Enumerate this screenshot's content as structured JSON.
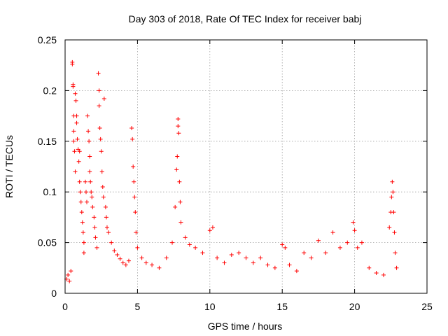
{
  "chart_data": {
    "type": "scatter",
    "title": "Day 303 of 2018, Rate Of TEC Index for receiver babj",
    "xlabel": "GPS time / hours",
    "ylabel": "ROTI / TECUs",
    "xlim": [
      0,
      25
    ],
    "ylim": [
      0,
      0.25
    ],
    "x_ticks": [
      0,
      5,
      10,
      15,
      20,
      25
    ],
    "x_tick_labels": [
      "0",
      "5",
      "10",
      "15",
      "20",
      "25"
    ],
    "y_ticks": [
      0,
      0.05,
      0.1,
      0.15,
      0.2,
      0.25
    ],
    "y_tick_labels": [
      "0",
      "0.05",
      "0.1",
      "0.15",
      "0.2",
      "0.25"
    ],
    "grid": true,
    "marker": "plus",
    "color": "#ff0000",
    "series": [
      {
        "points": [
          [
            0.1,
            0.014
          ],
          [
            0.2,
            0.018
          ],
          [
            0.3,
            0.012
          ],
          [
            0.4,
            0.022
          ],
          [
            0.5,
            0.228
          ],
          [
            0.5,
            0.226
          ],
          [
            0.55,
            0.206
          ],
          [
            0.55,
            0.204
          ],
          [
            0.6,
            0.175
          ],
          [
            0.6,
            0.16
          ],
          [
            0.6,
            0.15
          ],
          [
            0.65,
            0.14
          ],
          [
            0.7,
            0.12
          ],
          [
            0.7,
            0.197
          ],
          [
            0.75,
            0.19
          ],
          [
            0.8,
            0.175
          ],
          [
            0.8,
            0.168
          ],
          [
            0.85,
            0.152
          ],
          [
            0.9,
            0.142
          ],
          [
            0.95,
            0.13
          ],
          [
            1.0,
            0.14
          ],
          [
            1.0,
            0.11
          ],
          [
            1.05,
            0.1
          ],
          [
            1.1,
            0.09
          ],
          [
            1.15,
            0.08
          ],
          [
            1.2,
            0.07
          ],
          [
            1.25,
            0.06
          ],
          [
            1.3,
            0.05
          ],
          [
            1.3,
            0.04
          ],
          [
            1.4,
            0.11
          ],
          [
            1.45,
            0.1
          ],
          [
            1.5,
            0.09
          ],
          [
            1.55,
            0.175
          ],
          [
            1.6,
            0.16
          ],
          [
            1.65,
            0.15
          ],
          [
            1.7,
            0.135
          ],
          [
            1.7,
            0.12
          ],
          [
            1.75,
            0.11
          ],
          [
            1.8,
            0.1
          ],
          [
            1.85,
            0.095
          ],
          [
            1.9,
            0.085
          ],
          [
            2.0,
            0.075
          ],
          [
            2.05,
            0.065
          ],
          [
            2.1,
            0.055
          ],
          [
            2.2,
            0.045
          ],
          [
            2.3,
            0.217
          ],
          [
            2.35,
            0.2
          ],
          [
            2.35,
            0.185
          ],
          [
            2.4,
            0.163
          ],
          [
            2.45,
            0.152
          ],
          [
            2.5,
            0.14
          ],
          [
            2.55,
            0.12
          ],
          [
            2.6,
            0.105
          ],
          [
            2.65,
            0.095
          ],
          [
            2.7,
            0.192
          ],
          [
            2.8,
            0.085
          ],
          [
            2.85,
            0.075
          ],
          [
            2.9,
            0.065
          ],
          [
            3.0,
            0.06
          ],
          [
            3.2,
            0.05
          ],
          [
            3.4,
            0.042
          ],
          [
            3.6,
            0.038
          ],
          [
            3.8,
            0.034
          ],
          [
            4.0,
            0.03
          ],
          [
            4.2,
            0.028
          ],
          [
            4.4,
            0.032
          ],
          [
            4.6,
            0.163
          ],
          [
            4.65,
            0.152
          ],
          [
            4.7,
            0.125
          ],
          [
            4.75,
            0.11
          ],
          [
            4.8,
            0.095
          ],
          [
            4.85,
            0.08
          ],
          [
            4.9,
            0.06
          ],
          [
            5.0,
            0.045
          ],
          [
            5.3,
            0.035
          ],
          [
            5.6,
            0.03
          ],
          [
            6.0,
            0.028
          ],
          [
            6.5,
            0.025
          ],
          [
            7.0,
            0.035
          ],
          [
            7.4,
            0.05
          ],
          [
            7.6,
            0.085
          ],
          [
            7.7,
            0.122
          ],
          [
            7.75,
            0.135
          ],
          [
            7.8,
            0.172
          ],
          [
            7.8,
            0.165
          ],
          [
            7.85,
            0.158
          ],
          [
            7.9,
            0.11
          ],
          [
            7.95,
            0.09
          ],
          [
            8.0,
            0.07
          ],
          [
            8.3,
            0.055
          ],
          [
            8.6,
            0.048
          ],
          [
            9.0,
            0.045
          ],
          [
            9.5,
            0.04
          ],
          [
            10.0,
            0.062
          ],
          [
            10.2,
            0.065
          ],
          [
            10.5,
            0.035
          ],
          [
            11.0,
            0.03
          ],
          [
            11.5,
            0.038
          ],
          [
            12.0,
            0.04
          ],
          [
            12.5,
            0.035
          ],
          [
            13.0,
            0.03
          ],
          [
            13.5,
            0.035
          ],
          [
            14.0,
            0.028
          ],
          [
            14.5,
            0.025
          ],
          [
            15.0,
            0.048
          ],
          [
            15.2,
            0.045
          ],
          [
            15.5,
            0.028
          ],
          [
            16.0,
            0.022
          ],
          [
            16.5,
            0.04
          ],
          [
            17.0,
            0.035
          ],
          [
            17.5,
            0.052
          ],
          [
            18.0,
            0.04
          ],
          [
            18.5,
            0.06
          ],
          [
            19.0,
            0.045
          ],
          [
            19.5,
            0.05
          ],
          [
            19.9,
            0.07
          ],
          [
            20.0,
            0.062
          ],
          [
            20.2,
            0.045
          ],
          [
            20.5,
            0.05
          ],
          [
            21.0,
            0.025
          ],
          [
            21.5,
            0.02
          ],
          [
            22.0,
            0.018
          ],
          [
            22.4,
            0.065
          ],
          [
            22.5,
            0.08
          ],
          [
            22.55,
            0.095
          ],
          [
            22.6,
            0.11
          ],
          [
            22.65,
            0.1
          ],
          [
            22.7,
            0.08
          ],
          [
            22.75,
            0.06
          ],
          [
            22.8,
            0.04
          ],
          [
            22.9,
            0.025
          ]
        ]
      }
    ]
  }
}
